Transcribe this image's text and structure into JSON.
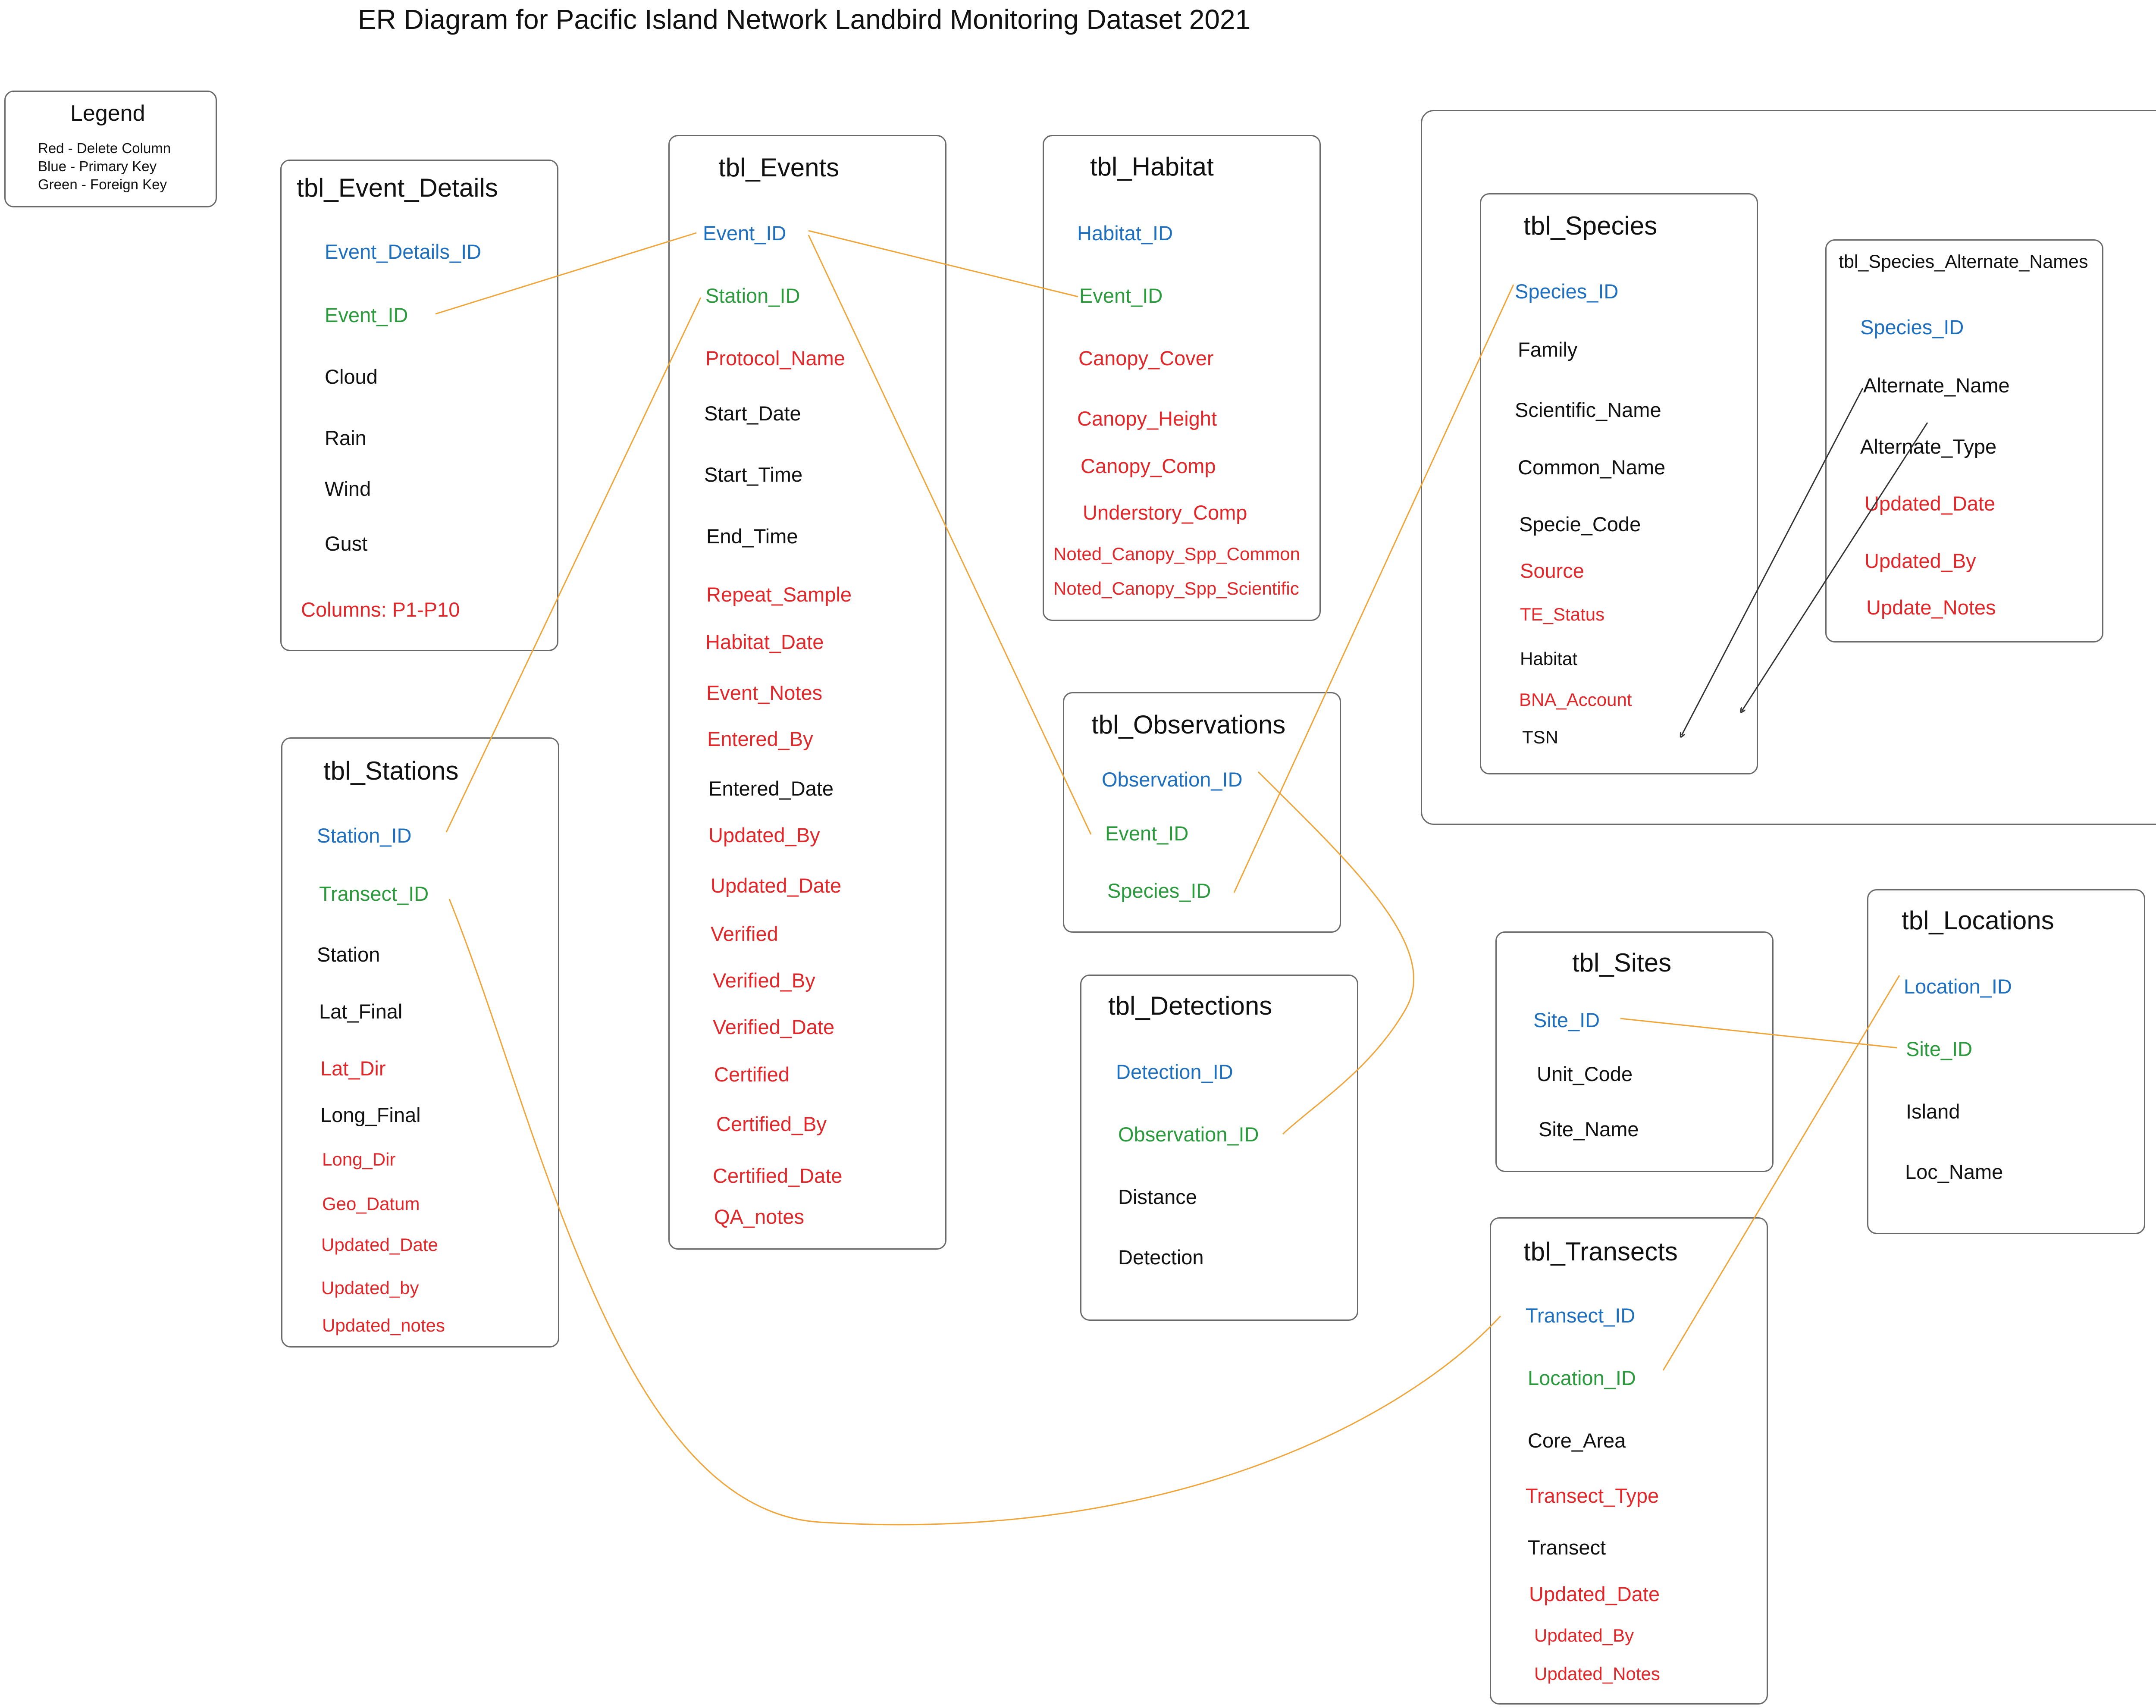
{
  "title": "ER Diagram for Pacific Island Network Landbird Monitoring Dataset 2021",
  "colors": {
    "primary_key": "#1f6fbf",
    "foreign_key": "#2b9a3c",
    "delete": "#e0282b",
    "normal": "#111111",
    "relationship_line": "#f0a53a",
    "arrow": "#333333"
  },
  "legend": {
    "title": "Legend",
    "lines": [
      "Red - Delete Column",
      "Blue - Primary Key",
      "Green - Foreign Key"
    ]
  },
  "tables": {
    "event_details": {
      "name": "tbl_Event_Details",
      "columns": [
        {
          "label": "Event_Details_ID",
          "kind": "pk"
        },
        {
          "label": "Event_ID",
          "kind": "fk"
        },
        {
          "label": "Cloud",
          "kind": "normal"
        },
        {
          "label": "Rain",
          "kind": "normal"
        },
        {
          "label": "Wind",
          "kind": "normal"
        },
        {
          "label": "Gust",
          "kind": "normal"
        },
        {
          "label": "Columns: P1-P10",
          "kind": "delete"
        }
      ]
    },
    "events": {
      "name": "tbl_Events",
      "columns": [
        {
          "label": "Event_ID",
          "kind": "pk"
        },
        {
          "label": "Station_ID",
          "kind": "fk"
        },
        {
          "label": "Protocol_Name",
          "kind": "delete"
        },
        {
          "label": "Start_Date",
          "kind": "normal"
        },
        {
          "label": "Start_Time",
          "kind": "normal"
        },
        {
          "label": "End_Time",
          "kind": "normal"
        },
        {
          "label": "Repeat_Sample",
          "kind": "delete"
        },
        {
          "label": "Habitat_Date",
          "kind": "delete"
        },
        {
          "label": "Event_Notes",
          "kind": "delete"
        },
        {
          "label": "Entered_By",
          "kind": "delete"
        },
        {
          "label": "Entered_Date",
          "kind": "normal"
        },
        {
          "label": "Updated_By",
          "kind": "delete"
        },
        {
          "label": "Updated_Date",
          "kind": "delete"
        },
        {
          "label": "Verified",
          "kind": "delete"
        },
        {
          "label": "Verified_By",
          "kind": "delete"
        },
        {
          "label": "Verified_Date",
          "kind": "delete"
        },
        {
          "label": "Certified",
          "kind": "delete"
        },
        {
          "label": "Certified_By",
          "kind": "delete"
        },
        {
          "label": "Certified_Date",
          "kind": "delete"
        },
        {
          "label": "QA_notes",
          "kind": "delete"
        }
      ]
    },
    "habitat": {
      "name": "tbl_Habitat",
      "columns": [
        {
          "label": "Habitat_ID",
          "kind": "pk"
        },
        {
          "label": "Event_ID",
          "kind": "fk"
        },
        {
          "label": "Canopy_Cover",
          "kind": "delete"
        },
        {
          "label": "Canopy_Height",
          "kind": "delete"
        },
        {
          "label": "Canopy_Comp",
          "kind": "delete"
        },
        {
          "label": "Understory_Comp",
          "kind": "delete"
        },
        {
          "label": "Noted_Canopy_Spp_Common",
          "kind": "delete"
        },
        {
          "label": "Noted_Canopy_Spp_Scientific",
          "kind": "delete"
        }
      ]
    },
    "species": {
      "name": "tbl_Species",
      "columns": [
        {
          "label": "Species_ID",
          "kind": "pk"
        },
        {
          "label": "Family",
          "kind": "normal"
        },
        {
          "label": "Scientific_Name",
          "kind": "normal"
        },
        {
          "label": "Common_Name",
          "kind": "normal"
        },
        {
          "label": "Specie_Code",
          "kind": "normal"
        },
        {
          "label": "Source",
          "kind": "delete"
        },
        {
          "label": "TE_Status",
          "kind": "delete"
        },
        {
          "label": "Habitat",
          "kind": "normal"
        },
        {
          "label": "BNA_Account",
          "kind": "delete"
        },
        {
          "label": "TSN",
          "kind": "normal"
        }
      ]
    },
    "species_alt": {
      "name": "tbl_Species_Alternate_Names",
      "columns": [
        {
          "label": "Species_ID",
          "kind": "pk"
        },
        {
          "label": "Alternate_Name",
          "kind": "normal"
        },
        {
          "label": "Alternate_Type",
          "kind": "normal"
        },
        {
          "label": "Updated_Date",
          "kind": "delete"
        },
        {
          "label": "Updated_By",
          "kind": "delete"
        },
        {
          "label": "Update_Notes",
          "kind": "delete"
        }
      ]
    },
    "observations": {
      "name": "tbl_Observations",
      "columns": [
        {
          "label": "Observation_ID",
          "kind": "pk"
        },
        {
          "label": "Event_ID",
          "kind": "fk"
        },
        {
          "label": "Species_ID",
          "kind": "fk"
        }
      ]
    },
    "detections": {
      "name": "tbl_Detections",
      "columns": [
        {
          "label": "Detection_ID",
          "kind": "pk"
        },
        {
          "label": "Observation_ID",
          "kind": "fk"
        },
        {
          "label": "Distance",
          "kind": "normal"
        },
        {
          "label": "Detection",
          "kind": "normal"
        }
      ]
    },
    "sites": {
      "name": "tbl_Sites",
      "columns": [
        {
          "label": "Site_ID",
          "kind": "pk"
        },
        {
          "label": "Unit_Code",
          "kind": "normal"
        },
        {
          "label": "Site_Name",
          "kind": "normal"
        }
      ]
    },
    "locations": {
      "name": "tbl_Locations",
      "columns": [
        {
          "label": "Location_ID",
          "kind": "pk"
        },
        {
          "label": "Site_ID",
          "kind": "fk"
        },
        {
          "label": "Island",
          "kind": "normal"
        },
        {
          "label": "Loc_Name",
          "kind": "normal"
        }
      ]
    },
    "stations": {
      "name": "tbl_Stations",
      "columns": [
        {
          "label": "Station_ID",
          "kind": "pk"
        },
        {
          "label": "Transect_ID",
          "kind": "fk"
        },
        {
          "label": "Station",
          "kind": "normal"
        },
        {
          "label": "Lat_Final",
          "kind": "normal"
        },
        {
          "label": "Lat_Dir",
          "kind": "delete"
        },
        {
          "label": "Long_Final",
          "kind": "normal"
        },
        {
          "label": "Long_Dir",
          "kind": "delete"
        },
        {
          "label": "Geo_Datum",
          "kind": "delete"
        },
        {
          "label": "Updated_Date",
          "kind": "delete"
        },
        {
          "label": "Updated_by",
          "kind": "delete"
        },
        {
          "label": "Updated_notes",
          "kind": "delete"
        }
      ]
    },
    "transects": {
      "name": "tbl_Transects",
      "columns": [
        {
          "label": "Transect_ID",
          "kind": "pk"
        },
        {
          "label": "Location_ID",
          "kind": "fk"
        },
        {
          "label": "Core_Area",
          "kind": "normal"
        },
        {
          "label": "Transect_Type",
          "kind": "delete"
        },
        {
          "label": "Transect",
          "kind": "normal"
        },
        {
          "label": "Updated_Date",
          "kind": "delete"
        },
        {
          "label": "Updated_By",
          "kind": "delete"
        },
        {
          "label": "Updated_Notes",
          "kind": "delete"
        }
      ]
    }
  }
}
